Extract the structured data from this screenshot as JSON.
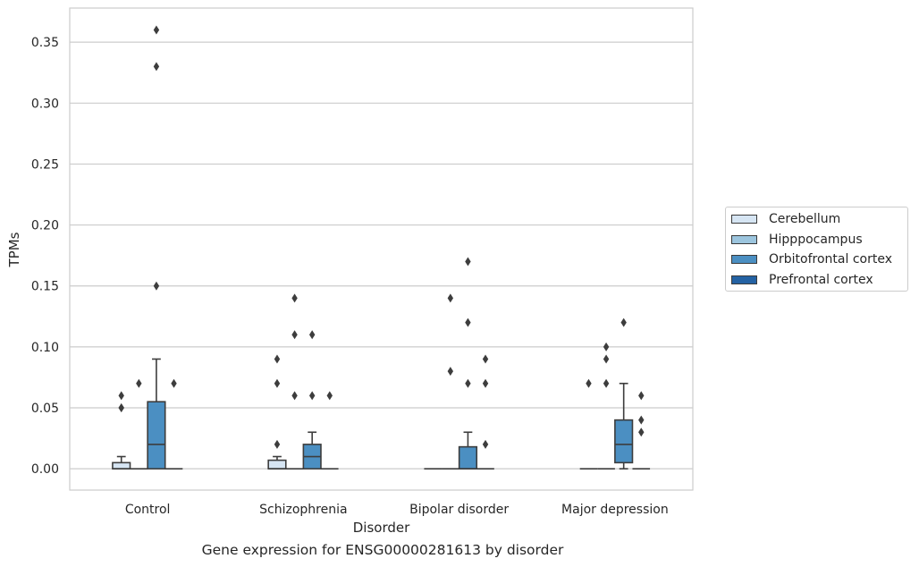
{
  "caption": "Gene expression for ENSG00000281613 by disorder",
  "chart_data": {
    "type": "box",
    "title": "",
    "xlabel": "Disorder",
    "ylabel": "TPMs",
    "ylim": [
      -0.0175,
      0.378
    ],
    "yticks": [
      0.0,
      0.05,
      0.1,
      0.15,
      0.2,
      0.25,
      0.3,
      0.35
    ],
    "ytick_labels": [
      "0.00",
      "0.05",
      "0.10",
      "0.15",
      "0.20",
      "0.25",
      "0.30",
      "0.35"
    ],
    "grid": "horizontal",
    "legend_position": "right",
    "categories": [
      "Control",
      "Schizophrenia",
      "Bipolar disorder",
      "Major depression"
    ],
    "series": [
      {
        "name": "Cerebellum",
        "color": "#d6e5f3",
        "boxes": [
          {
            "min": 0.0,
            "q1": 0.0,
            "median": 0.0,
            "q3": 0.005,
            "max": 0.01,
            "outliers": [
              0.05,
              0.05,
              0.06
            ]
          },
          {
            "min": 0.0,
            "q1": 0.0,
            "median": 0.0,
            "q3": 0.007,
            "max": 0.01,
            "outliers": [
              0.02,
              0.07,
              0.09
            ]
          },
          {
            "min": 0.0,
            "q1": 0.0,
            "median": 0.0,
            "q3": 0.0,
            "max": 0.0,
            "outliers": []
          },
          {
            "min": 0.0,
            "q1": 0.0,
            "median": 0.0,
            "q3": 0.0,
            "max": 0.0,
            "outliers": [
              0.07
            ]
          }
        ]
      },
      {
        "name": "Hipppocampus",
        "color": "#9cc5de",
        "boxes": [
          {
            "min": 0.0,
            "q1": 0.0,
            "median": 0.0,
            "q3": 0.0,
            "max": 0.0,
            "outliers": [
              0.07
            ]
          },
          {
            "min": 0.0,
            "q1": 0.0,
            "median": 0.0,
            "q3": 0.0,
            "max": 0.0,
            "outliers": [
              0.06,
              0.11,
              0.14
            ]
          },
          {
            "min": 0.0,
            "q1": 0.0,
            "median": 0.0,
            "q3": 0.0,
            "max": 0.0,
            "outliers": [
              0.08,
              0.14
            ]
          },
          {
            "min": 0.0,
            "q1": 0.0,
            "median": 0.0,
            "q3": 0.0,
            "max": 0.0,
            "outliers": [
              0.07,
              0.09,
              0.1
            ]
          }
        ]
      },
      {
        "name": "Orbitofrontal cortex",
        "color": "#4b8fc2",
        "boxes": [
          {
            "min": 0.0,
            "q1": 0.0,
            "median": 0.02,
            "q3": 0.055,
            "max": 0.09,
            "outliers": [
              0.15,
              0.33,
              0.36
            ]
          },
          {
            "min": 0.0,
            "q1": 0.0,
            "median": 0.01,
            "q3": 0.02,
            "max": 0.03,
            "outliers": [
              0.06,
              0.11
            ]
          },
          {
            "min": 0.0,
            "q1": 0.0,
            "median": 0.0,
            "q3": 0.018,
            "max": 0.03,
            "outliers": [
              0.07,
              0.12,
              0.17
            ]
          },
          {
            "min": 0.0,
            "q1": 0.005,
            "median": 0.02,
            "q3": 0.04,
            "max": 0.07,
            "outliers": [
              0.12
            ]
          }
        ]
      },
      {
        "name": "Prefrontal cortex",
        "color": "#2462a3",
        "boxes": [
          {
            "min": 0.0,
            "q1": 0.0,
            "median": 0.0,
            "q3": 0.0,
            "max": 0.0,
            "outliers": [
              0.07
            ]
          },
          {
            "min": 0.0,
            "q1": 0.0,
            "median": 0.0,
            "q3": 0.0,
            "max": 0.0,
            "outliers": [
              0.06
            ]
          },
          {
            "min": 0.0,
            "q1": 0.0,
            "median": 0.0,
            "q3": 0.0,
            "max": 0.0,
            "outliers": [
              0.02,
              0.07,
              0.09
            ]
          },
          {
            "min": 0.0,
            "q1": 0.0,
            "median": 0.0,
            "q3": 0.0,
            "max": 0.0,
            "outliers": [
              0.03,
              0.04,
              0.06
            ]
          }
        ]
      }
    ]
  }
}
